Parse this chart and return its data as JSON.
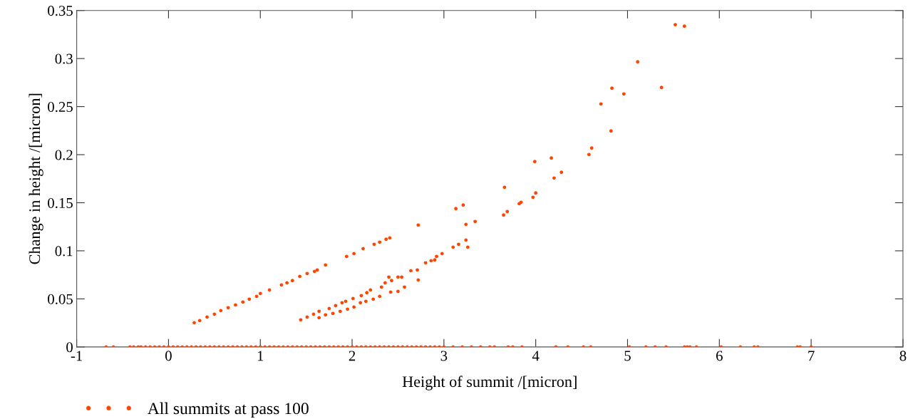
{
  "chart_data": {
    "type": "scatter",
    "xlabel": "Height of summit /[micron]",
    "ylabel": "Change in height /[micron]",
    "xlim": [
      -1,
      8
    ],
    "xticks": [
      -1,
      0,
      1,
      2,
      3,
      4,
      5,
      6,
      7,
      8
    ],
    "ylim": [
      0,
      0.35
    ],
    "yticks": [
      0,
      0.05,
      0.1,
      0.15,
      0.2,
      0.25,
      0.3,
      0.35
    ],
    "grid": false,
    "legend": "bottom left",
    "marker": "circle",
    "series": [
      {
        "name": "All summits at pass 100",
        "color": "#ff4500",
        "x": [
          0.28,
          0.34,
          0.42,
          0.5,
          0.57,
          0.65,
          0.73,
          0.81,
          0.88,
          0.96,
          1.0,
          1.1,
          1.23,
          1.29,
          1.35,
          1.43,
          1.51,
          1.59,
          1.62,
          1.71,
          1.94,
          2.02,
          2.12,
          2.24,
          2.3,
          2.37,
          2.41,
          2.72,
          1.44,
          1.51,
          1.58,
          1.64,
          1.75,
          1.82,
          1.89,
          1.93,
          2.01,
          2.1,
          2.16,
          2.2,
          2.3,
          2.32,
          2.36,
          2.4,
          2.43,
          2.5,
          2.54,
          2.42,
          2.5,
          2.57,
          2.64,
          2.71,
          2.72,
          2.8,
          2.86,
          2.9,
          2.92,
          2.98,
          3.1,
          3.16,
          3.26,
          3.24,
          3.24,
          3.34,
          3.13,
          3.21,
          3.65,
          3.69,
          3.66,
          3.82,
          3.84,
          3.97,
          4.0,
          3.99,
          4.17,
          4.2,
          4.28,
          4.58,
          4.61,
          4.71,
          4.82,
          4.83,
          4.96,
          5.11,
          5.37,
          5.52,
          5.62,
          1.64,
          1.71,
          1.79,
          1.87,
          1.95,
          2.02,
          2.09,
          2.15,
          2.23,
          -0.68,
          -0.6,
          -0.42,
          -0.38,
          -0.33,
          -0.3,
          -0.25,
          -0.2,
          -0.15,
          -0.1,
          -0.05,
          0,
          0.05,
          0.1,
          0.15,
          0.2,
          0.25,
          0.3,
          0.35,
          0.4,
          0.45,
          0.5,
          0.55,
          0.6,
          0.65,
          0.7,
          0.75,
          0.8,
          0.85,
          0.9,
          0.95,
          1.0,
          1.05,
          1.1,
          1.15,
          1.2,
          1.25,
          1.3,
          1.35,
          1.4,
          1.45,
          1.5,
          1.55,
          1.6,
          1.65,
          1.7,
          1.75,
          1.8,
          1.85,
          1.9,
          1.95,
          2.0,
          2.05,
          2.1,
          2.15,
          2.2,
          2.25,
          2.3,
          2.35,
          2.4,
          2.45,
          2.5,
          2.55,
          2.6,
          2.65,
          2.7,
          2.75,
          2.8,
          2.85,
          2.9,
          2.95,
          3.0,
          3.1,
          3.2,
          3.3,
          3.4,
          3.5,
          3.55,
          3.7,
          3.75,
          3.85,
          4.22,
          4.35,
          4.52,
          4.6,
          5.02,
          5.2,
          5.3,
          5.42,
          5.62,
          5.65,
          5.68,
          5.75,
          6.02,
          6.23,
          6.38,
          6.42,
          6.85,
          6.88,
          7.0
        ],
        "values": [
          0.0252,
          0.0274,
          0.0311,
          0.0341,
          0.0378,
          0.0408,
          0.0437,
          0.0467,
          0.0497,
          0.0526,
          0.0556,
          0.0593,
          0.0645,
          0.0667,
          0.069,
          0.0734,
          0.0764,
          0.0786,
          0.0801,
          0.0853,
          0.0942,
          0.0971,
          0.1023,
          0.1068,
          0.109,
          0.112,
          0.1134,
          0.1268,
          0.0282,
          0.0311,
          0.0341,
          0.0371,
          0.04,
          0.043,
          0.046,
          0.0475,
          0.0504,
          0.0534,
          0.0564,
          0.0593,
          0.0526,
          0.0623,
          0.0667,
          0.0727,
          0.069,
          0.0727,
          0.0727,
          0.0571,
          0.0578,
          0.0623,
          0.0793,
          0.0801,
          0.0697,
          0.0875,
          0.0897,
          0.0905,
          0.0942,
          0.0971,
          0.1038,
          0.1068,
          0.1038,
          0.1112,
          0.1275,
          0.1305,
          0.1439,
          0.1476,
          0.1372,
          0.1409,
          0.1661,
          0.149,
          0.1505,
          0.1557,
          0.1602,
          0.1928,
          0.1965,
          0.1757,
          0.1817,
          0.2002,
          0.2069,
          0.2528,
          0.2247,
          0.2692,
          0.2632,
          0.2966,
          0.2699,
          0.3352,
          0.3337,
          0.0304,
          0.0334,
          0.0349,
          0.0371,
          0.0393,
          0.0415,
          0.046,
          0.0475,
          0.0497,
          0,
          0,
          0,
          0,
          0,
          0,
          0,
          0,
          0,
          0,
          0,
          0,
          0,
          0,
          0,
          0,
          0,
          0,
          0,
          0,
          0,
          0,
          0,
          0,
          0,
          0,
          0,
          0,
          0,
          0,
          0,
          0,
          0,
          0,
          0,
          0,
          0,
          0,
          0,
          0,
          0,
          0,
          0,
          0,
          0,
          0,
          0,
          0,
          0,
          0,
          0,
          0,
          0,
          0,
          0,
          0,
          0,
          0,
          0,
          0,
          0,
          0,
          0,
          0,
          0,
          0,
          0,
          0,
          0,
          0,
          0,
          0,
          0,
          0,
          0,
          0,
          0,
          0,
          0,
          0,
          0,
          0,
          0,
          0,
          0,
          0,
          0,
          0,
          0,
          0,
          0,
          0,
          0,
          0,
          0,
          0,
          0,
          0,
          0,
          0
        ]
      }
    ]
  }
}
